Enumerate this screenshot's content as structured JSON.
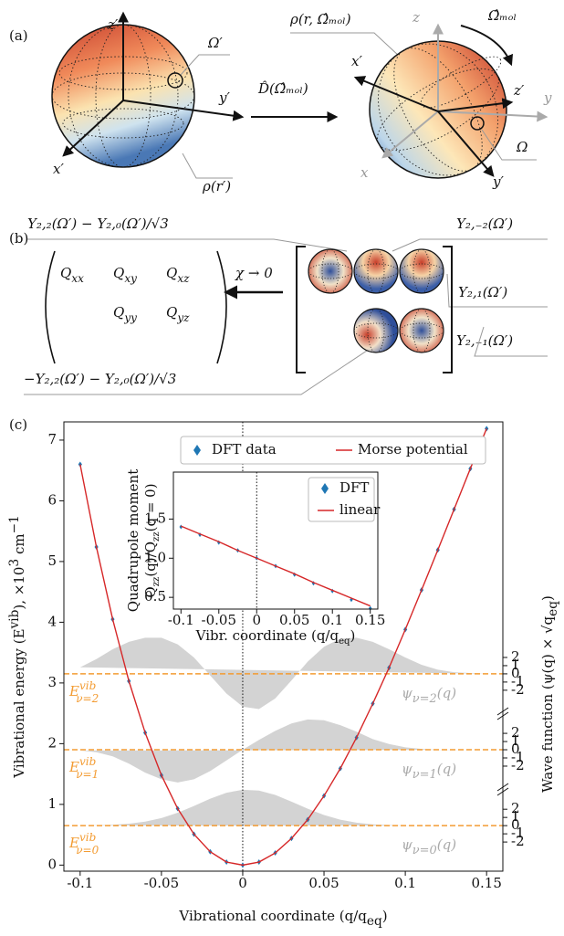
{
  "panel_a": {
    "label": "(a)",
    "texts": [
      "z′",
      "Ω′",
      "y′",
      "x′",
      "ρ(r′)",
      "D̂(Ω̂ₘₒₗ)",
      "ρ(r, Ω̂ₘₒₗ)",
      "z",
      "Ω̂ₘₒₗ",
      "x′",
      "z′",
      "y",
      "Ω",
      "x",
      "y′"
    ]
  },
  "panel_b": {
    "label": "(b)",
    "texts": [
      "Y₂,₂(Ω′) − Y₂,₀(Ω′)/√3",
      "Y₂,₋₂(Ω′)",
      "Y₂,₁(Ω′)",
      "Y₂,₋₁(Ω′)",
      "−Y₂,₂(Ω′) − Y₂,₀(Ω′)/√3",
      "χ → 0"
    ],
    "matrix": [
      [
        "Q",
        "xx"
      ],
      [
        "Q",
        "xy"
      ],
      [
        "Q",
        "xz"
      ],
      [
        "Q",
        "yy"
      ],
      [
        "Q",
        "yz"
      ]
    ]
  },
  "panel_c": {
    "label": "(c)"
  },
  "chart_data": [
    {
      "type": "line",
      "xlabel": [
        "Vibrational coordinate (q/q",
        "eq",
        ")"
      ],
      "ylabel": [
        "Vibrational energy (E",
        "vib",
        "), ×10",
        "3",
        " cm",
        "−1"
      ],
      "y2label": [
        "Wave function (ψ(q) × √q",
        "eq",
        ")"
      ],
      "x": [
        -0.1,
        -0.09,
        -0.08,
        -0.07,
        -0.06,
        -0.05,
        -0.04,
        -0.03,
        -0.02,
        -0.01,
        0,
        0.01,
        0.02,
        0.03,
        0.04,
        0.05,
        0.06,
        0.07,
        0.08,
        0.09,
        0.1,
        0.11,
        0.12,
        0.13,
        0.14,
        0.15
      ],
      "series": [
        {
          "name": "DFT data",
          "color": "#1f77b4",
          "marker": "diamond",
          "values": [
            6.6,
            5.24,
            4.05,
            3.03,
            2.18,
            1.48,
            0.93,
            0.51,
            0.22,
            0.05,
            0,
            0.05,
            0.2,
            0.44,
            0.75,
            1.14,
            1.59,
            2.1,
            2.66,
            3.25,
            3.88,
            4.53,
            5.19,
            5.86,
            6.53,
            7.19
          ]
        },
        {
          "name": "Morse potential",
          "color": "#d62728",
          "marker": "line",
          "values": [
            6.6,
            5.24,
            4.05,
            3.03,
            2.18,
            1.48,
            0.93,
            0.51,
            0.22,
            0.05,
            0,
            0.05,
            0.2,
            0.44,
            0.75,
            1.14,
            1.59,
            2.1,
            2.66,
            3.25,
            3.88,
            4.53,
            5.19,
            5.86,
            6.53,
            7.19
          ]
        }
      ],
      "levels": [
        {
          "value": 0.65,
          "color": "#f39c33",
          "label": [
            "E",
            "vib",
            "ν=0"
          ]
        },
        {
          "value": 1.9,
          "color": "#f39c33",
          "label": [
            "E",
            "vib",
            "ν=1"
          ]
        },
        {
          "value": 3.15,
          "color": "#f39c33",
          "label": [
            "E",
            "vib",
            "ν=2"
          ]
        }
      ],
      "wavefunctions": [
        {
          "label": [
            "ψ",
            "ν=0",
            "(q)"
          ],
          "color": "#d3d3d3",
          "values": [
            0.01,
            0.04,
            0.1,
            0.24,
            0.49,
            0.92,
            1.57,
            2.39,
            3.29,
            4.01,
            4.38,
            4.27,
            3.75,
            2.93,
            2.06,
            1.29,
            0.73,
            0.36,
            0.16,
            0.07,
            0.02,
            0.01,
            0,
            0,
            0,
            0
          ]
        },
        {
          "label": [
            "ψ",
            "ν=1",
            "(q)"
          ],
          "color": "#d3d3d3",
          "values": [
            -0.1,
            -0.3,
            -0.8,
            -1.7,
            -2.8,
            -3.6,
            -4.0,
            -3.6,
            -2.6,
            -1.3,
            0,
            1.2,
            2.3,
            3.2,
            3.7,
            3.6,
            3.0,
            2.2,
            1.3,
            0.7,
            0.3,
            0.1,
            0,
            0,
            0,
            0
          ]
        },
        {
          "label": [
            "ψ",
            "ν=2",
            "(q)"
          ],
          "color": "#d3d3d3",
          "values": [
            0.8,
            1.8,
            3.0,
            3.9,
            4.4,
            4.4,
            3.6,
            2.0,
            -0.2,
            -2.4,
            -4.0,
            -4.3,
            -3.0,
            -0.8,
            1.5,
            3.3,
            4.3,
            4.4,
            3.9,
            3.0,
            2.0,
            1.1,
            0.5,
            0.2,
            0.1,
            0
          ]
        }
      ],
      "xlim": [
        -0.11,
        0.16
      ],
      "ylim": [
        -0.1,
        7.3
      ],
      "xticks": [
        -0.1,
        -0.05,
        0,
        0.05,
        0.1,
        0.15
      ],
      "yticks": [
        0,
        1,
        2,
        3,
        4,
        5,
        6,
        7
      ],
      "y2ticks": [
        2,
        1,
        0,
        -1,
        -2
      ],
      "vline": 0,
      "legend": "upper center"
    },
    {
      "type": "line",
      "xlabel": [
        "Vibr. coordinate (q/q",
        "eq",
        ")"
      ],
      "ylabel": [
        [
          "Quadrupole moment"
        ],
        [
          "Q",
          "zz",
          "(q)/Q",
          "zz",
          "(q = 0)"
        ]
      ],
      "x": [
        -0.1,
        -0.075,
        -0.05,
        -0.025,
        0,
        0.025,
        0.05,
        0.075,
        0.1,
        0.125,
        0.15
      ],
      "series": [
        {
          "name": "DFT",
          "color": "#1f77b4",
          "marker": "diamond",
          "values": [
            1.4,
            1.3,
            1.2,
            1.1,
            1.0,
            0.9,
            0.79,
            0.68,
            0.58,
            0.47,
            0.36
          ]
        },
        {
          "name": "linear",
          "color": "#d62728",
          "marker": "line",
          "values": [
            1.41,
            1.31,
            1.21,
            1.1,
            1.0,
            0.9,
            0.8,
            0.69,
            0.59,
            0.49,
            0.39
          ]
        }
      ],
      "xlim": [
        -0.11,
        0.16
      ],
      "ylim": [
        0.35,
        2.1
      ],
      "xticks": [
        -0.1,
        -0.05,
        0,
        0.05,
        0.1,
        0.15
      ],
      "yticks": [
        0.5,
        {
          "value": 1,
          "label": "1.0"
        },
        1.5
      ],
      "vline": 0,
      "legend": "upper right"
    }
  ]
}
